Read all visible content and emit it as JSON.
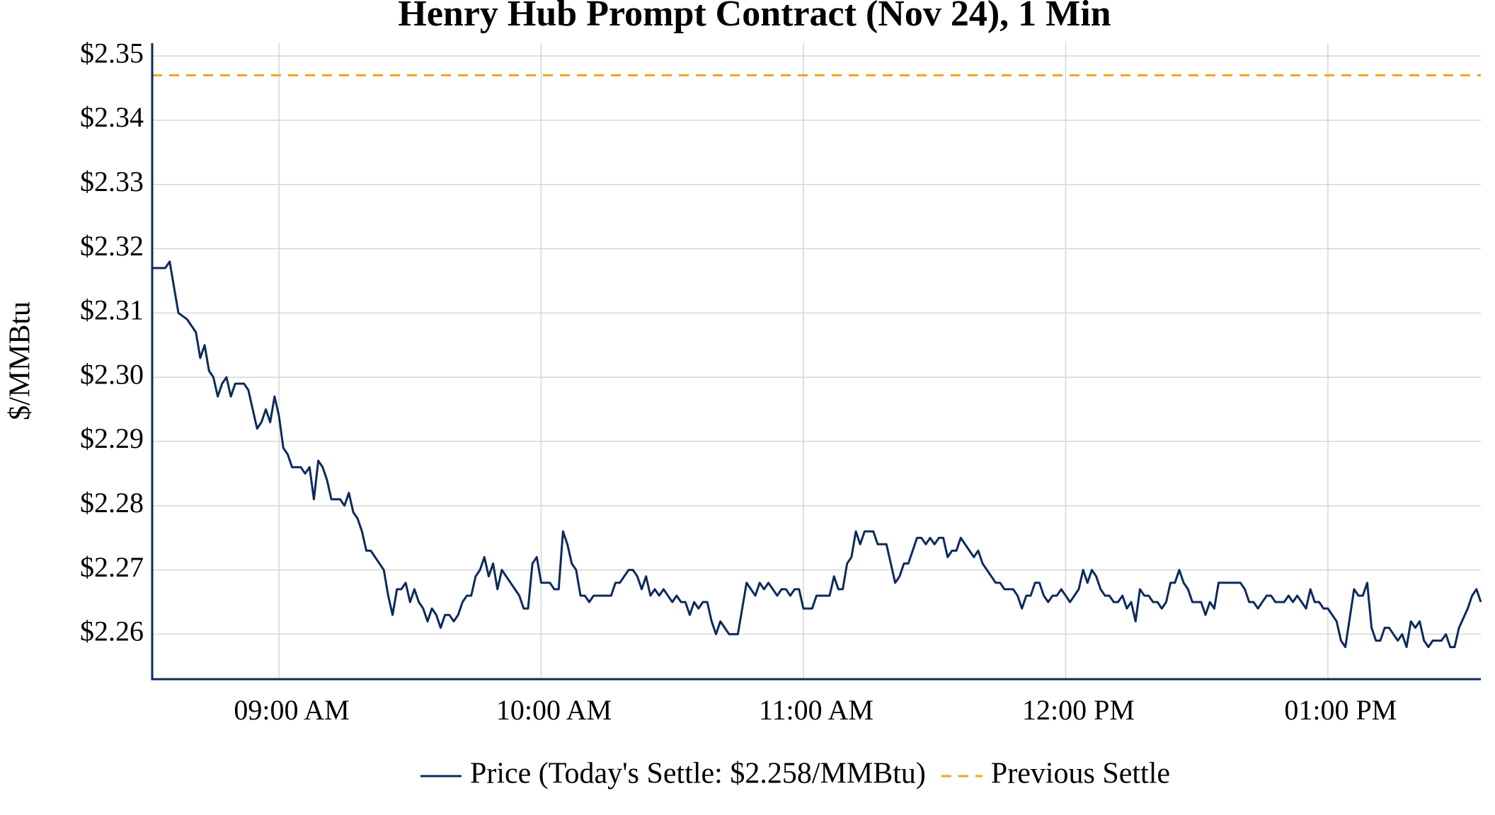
{
  "chart_data": {
    "type": "line",
    "title": "Henry Hub Prompt Contract (Nov 24), 1 Min",
    "y_label": "$/MMBtu",
    "x": [
      "08:31",
      "08:34",
      "08:35",
      "08:36",
      "08:37",
      "08:39",
      "08:41",
      "08:42",
      "08:43",
      "08:44",
      "08:45",
      "08:46",
      "08:47",
      "08:48",
      "08:49",
      "08:50",
      "08:52",
      "08:53",
      "08:55",
      "08:56",
      "08:57",
      "08:58",
      "08:59",
      "09:00",
      "09:01",
      "09:02",
      "09:03",
      "09:05",
      "09:06",
      "09:07",
      "09:08",
      "09:09",
      "09:10",
      "09:11",
      "09:12",
      "09:14",
      "09:15",
      "09:16",
      "09:17",
      "09:18",
      "09:19",
      "09:20",
      "09:21",
      "09:23",
      "09:24",
      "09:25",
      "09:26",
      "09:27",
      "09:28",
      "09:29",
      "09:30",
      "09:31",
      "09:32",
      "09:33",
      "09:34",
      "09:35",
      "09:36",
      "09:37",
      "09:38",
      "09:39",
      "09:40",
      "09:41",
      "09:42",
      "09:43",
      "09:44",
      "09:45",
      "09:46",
      "09:47",
      "09:48",
      "09:49",
      "09:50",
      "09:51",
      "09:52",
      "09:53",
      "09:54",
      "09:55",
      "09:56",
      "09:57",
      "09:58",
      "09:59",
      "10:00",
      "10:02",
      "10:03",
      "10:04",
      "10:05",
      "10:06",
      "10:07",
      "10:08",
      "10:09",
      "10:10",
      "10:11",
      "10:12",
      "10:16",
      "10:17",
      "10:18",
      "10:19",
      "10:20",
      "10:21",
      "10:22",
      "10:23",
      "10:24",
      "10:25",
      "10:26",
      "10:27",
      "10:28",
      "10:29",
      "10:30",
      "10:31",
      "10:32",
      "10:33",
      "10:34",
      "10:35",
      "10:36",
      "10:37",
      "10:38",
      "10:39",
      "10:40",
      "10:41",
      "10:42",
      "10:43",
      "10:45",
      "10:46",
      "10:47",
      "10:48",
      "10:49",
      "10:50",
      "10:51",
      "10:52",
      "10:53",
      "10:54",
      "10:55",
      "10:56",
      "10:57",
      "10:58",
      "10:59",
      "11:00",
      "11:02",
      "11:03",
      "11:05",
      "11:06",
      "11:07",
      "11:08",
      "11:09",
      "11:10",
      "11:11",
      "11:12",
      "11:13",
      "11:14",
      "11:16",
      "11:17",
      "11:19",
      "11:20",
      "11:21",
      "11:22",
      "11:23",
      "11:24",
      "11:25",
      "11:26",
      "11:27",
      "11:28",
      "11:29",
      "11:30",
      "11:31",
      "11:32",
      "11:33",
      "11:34",
      "11:35",
      "11:36",
      "11:37",
      "11:38",
      "11:39",
      "11:40",
      "11:41",
      "11:42",
      "11:43",
      "11:44",
      "11:45",
      "11:46",
      "11:48",
      "11:49",
      "11:50",
      "11:51",
      "11:52",
      "11:53",
      "11:54",
      "11:55",
      "11:56",
      "11:57",
      "11:58",
      "11:59",
      "12:00",
      "12:01",
      "12:02",
      "12:03",
      "12:04",
      "12:05",
      "12:06",
      "12:07",
      "12:08",
      "12:09",
      "12:10",
      "12:11",
      "12:12",
      "12:13",
      "12:14",
      "12:15",
      "12:16",
      "12:17",
      "12:18",
      "12:19",
      "12:20",
      "12:21",
      "12:22",
      "12:23",
      "12:24",
      "12:25",
      "12:26",
      "12:27",
      "12:28",
      "12:29",
      "12:31",
      "12:32",
      "12:33",
      "12:34",
      "12:35",
      "12:40",
      "12:41",
      "12:42",
      "12:43",
      "12:44",
      "12:45",
      "12:46",
      "12:47",
      "12:48",
      "12:50",
      "12:51",
      "12:52",
      "12:53",
      "12:54",
      "12:55",
      "12:56",
      "12:57",
      "12:58",
      "12:59",
      "13:00",
      "13:01",
      "13:02",
      "13:03",
      "13:04",
      "13:06",
      "13:07",
      "13:08",
      "13:09",
      "13:10",
      "13:11",
      "13:12",
      "13:13",
      "13:14",
      "13:15",
      "13:16",
      "13:17",
      "13:18",
      "13:19",
      "13:20",
      "13:21",
      "13:22",
      "13:23",
      "13:24",
      "13:26",
      "13:27",
      "13:28",
      "13:29",
      "13:30",
      "13:32",
      "13:33",
      "13:34",
      "13:35"
    ],
    "series": [
      {
        "name": "Price (Today's Settle: $2.258/MMBtu)",
        "color": "#0b2a5b",
        "values": [
          2.317,
          2.317,
          2.318,
          2.314,
          2.31,
          2.309,
          2.307,
          2.303,
          2.305,
          2.301,
          2.3,
          2.297,
          2.299,
          2.3,
          2.297,
          2.299,
          2.299,
          2.298,
          2.292,
          2.293,
          2.295,
          2.293,
          2.297,
          2.294,
          2.289,
          2.288,
          2.286,
          2.286,
          2.285,
          2.286,
          2.281,
          2.287,
          2.286,
          2.284,
          2.281,
          2.281,
          2.28,
          2.282,
          2.279,
          2.278,
          2.276,
          2.273,
          2.273,
          2.271,
          2.27,
          2.266,
          2.263,
          2.267,
          2.267,
          2.268,
          2.265,
          2.267,
          2.265,
          2.264,
          2.262,
          2.264,
          2.263,
          2.261,
          2.263,
          2.263,
          2.262,
          2.263,
          2.265,
          2.266,
          2.266,
          2.269,
          2.27,
          2.272,
          2.269,
          2.271,
          2.267,
          2.27,
          2.269,
          2.268,
          2.267,
          2.266,
          2.264,
          2.264,
          2.271,
          2.272,
          2.268,
          2.268,
          2.267,
          2.267,
          2.276,
          2.274,
          2.271,
          2.27,
          2.266,
          2.266,
          2.265,
          2.266,
          2.266,
          2.268,
          2.268,
          2.269,
          2.27,
          2.27,
          2.269,
          2.267,
          2.269,
          2.266,
          2.267,
          2.266,
          2.267,
          2.266,
          2.265,
          2.266,
          2.265,
          2.265,
          2.263,
          2.265,
          2.264,
          2.265,
          2.265,
          2.262,
          2.26,
          2.262,
          2.261,
          2.26,
          2.26,
          2.264,
          2.268,
          2.267,
          2.266,
          2.268,
          2.267,
          2.268,
          2.267,
          2.266,
          2.267,
          2.267,
          2.266,
          2.267,
          2.267,
          2.264,
          2.264,
          2.266,
          2.266,
          2.266,
          2.269,
          2.267,
          2.267,
          2.271,
          2.272,
          2.276,
          2.274,
          2.276,
          2.276,
          2.274,
          2.274,
          2.271,
          2.268,
          2.269,
          2.271,
          2.271,
          2.273,
          2.275,
          2.275,
          2.274,
          2.275,
          2.274,
          2.275,
          2.275,
          2.272,
          2.273,
          2.273,
          2.275,
          2.274,
          2.273,
          2.272,
          2.273,
          2.271,
          2.27,
          2.269,
          2.268,
          2.268,
          2.267,
          2.267,
          2.266,
          2.264,
          2.266,
          2.266,
          2.268,
          2.268,
          2.266,
          2.265,
          2.266,
          2.266,
          2.267,
          2.266,
          2.265,
          2.266,
          2.267,
          2.27,
          2.268,
          2.27,
          2.269,
          2.267,
          2.266,
          2.266,
          2.265,
          2.265,
          2.266,
          2.264,
          2.265,
          2.262,
          2.267,
          2.266,
          2.266,
          2.265,
          2.265,
          2.264,
          2.265,
          2.268,
          2.268,
          2.27,
          2.268,
          2.267,
          2.265,
          2.265,
          2.263,
          2.265,
          2.264,
          2.268,
          2.268,
          2.267,
          2.265,
          2.265,
          2.264,
          2.265,
          2.266,
          2.266,
          2.265,
          2.265,
          2.266,
          2.265,
          2.266,
          2.265,
          2.264,
          2.267,
          2.265,
          2.265,
          2.264,
          2.264,
          2.263,
          2.262,
          2.259,
          2.258,
          2.267,
          2.266,
          2.266,
          2.268,
          2.261,
          2.259,
          2.259,
          2.261,
          2.261,
          2.26,
          2.259,
          2.26,
          2.258,
          2.262,
          2.261,
          2.262,
          2.259,
          2.258,
          2.259,
          2.259,
          2.26,
          2.258,
          2.258,
          2.261,
          2.264,
          2.266,
          2.267,
          2.265
        ]
      }
    ],
    "hlines": [
      {
        "name": "Previous Settle",
        "value": 2.347,
        "color": "#f5a21b",
        "dash": "dashed"
      }
    ],
    "xlim": [
      "08:31",
      "13:35"
    ],
    "xticks": [
      {
        "value": "09:00",
        "label": "09:00 AM"
      },
      {
        "value": "10:00",
        "label": "10:00 AM"
      },
      {
        "value": "11:00",
        "label": "11:00 AM"
      },
      {
        "value": "12:00",
        "label": "12:00 PM"
      },
      {
        "value": "13:00",
        "label": "01:00 PM"
      }
    ],
    "ylim": [
      2.253,
      2.352
    ],
    "yticks": [
      {
        "value": 2.26,
        "label": "$2.26"
      },
      {
        "value": 2.27,
        "label": "$2.27"
      },
      {
        "value": 2.28,
        "label": "$2.28"
      },
      {
        "value": 2.29,
        "label": "$2.29"
      },
      {
        "value": 2.3,
        "label": "$2.30"
      },
      {
        "value": 2.31,
        "label": "$2.31"
      },
      {
        "value": 2.32,
        "label": "$2.32"
      },
      {
        "value": 2.33,
        "label": "$2.33"
      },
      {
        "value": 2.34,
        "label": "$2.34"
      },
      {
        "value": 2.35,
        "label": "$2.35"
      }
    ],
    "grid": true,
    "legend": "bottom"
  }
}
